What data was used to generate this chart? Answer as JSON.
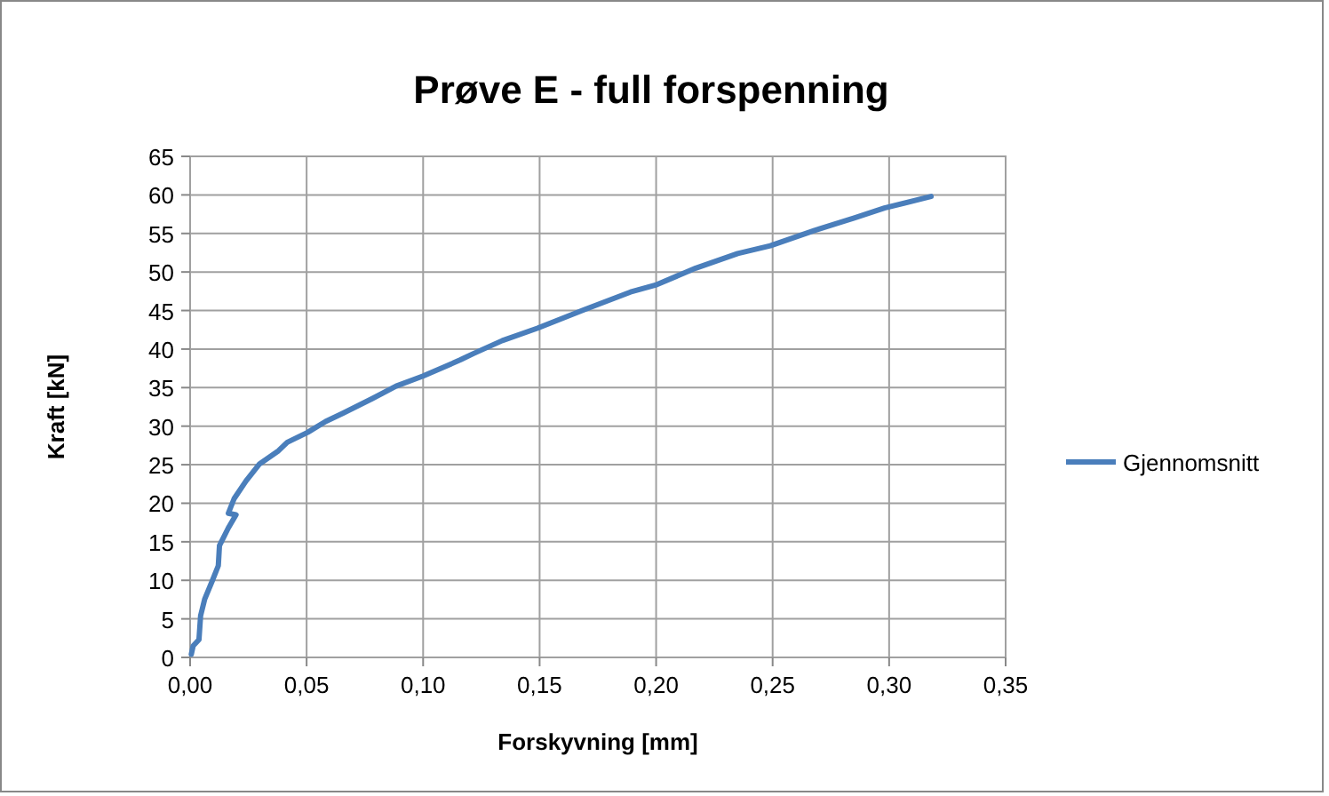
{
  "chart_data": {
    "type": "line",
    "title": "Prøve E - full forspenning",
    "xlabel": "Forskyvning [mm]",
    "ylabel": "Kraft [kN]",
    "xlim": [
      0,
      0.35
    ],
    "xticks": [
      {
        "value": 0,
        "label": "0,00"
      },
      {
        "value": 0.05,
        "label": "0,05"
      },
      {
        "value": 0.1,
        "label": "0,10"
      },
      {
        "value": 0.15,
        "label": "0,15"
      },
      {
        "value": 0.2,
        "label": "0,20"
      },
      {
        "value": 0.25,
        "label": "0,25"
      },
      {
        "value": 0.3,
        "label": "0,30"
      },
      {
        "value": 0.35,
        "label": "0,35"
      }
    ],
    "ylim": [
      0,
      65
    ],
    "yticks": [
      0,
      5,
      10,
      15,
      20,
      25,
      30,
      35,
      40,
      45,
      50,
      55,
      60,
      65
    ],
    "grid": true,
    "legend": "right",
    "marker": "none",
    "line_style": "solid",
    "series": [
      {
        "name": "Gjennomsnitt",
        "color": "#4a7ebb",
        "x": [
          0.0005,
          0.0013,
          0.0038,
          0.0045,
          0.0063,
          0.0096,
          0.0121,
          0.0126,
          0.0164,
          0.0197,
          0.0164,
          0.0189,
          0.024,
          0.0298,
          0.0379,
          0.0417,
          0.0505,
          0.0581,
          0.0657,
          0.0783,
          0.0884,
          0.1,
          0.116,
          0.1215,
          0.134,
          0.149,
          0.169,
          0.189,
          0.1997,
          0.217,
          0.235,
          0.249,
          0.268,
          0.285,
          0.298,
          0.318
        ],
        "values": [
          0.4,
          1.5,
          2.3,
          5.4,
          7.6,
          10,
          11.9,
          14.5,
          16.8,
          18.5,
          18.7,
          20.6,
          22.9,
          25.1,
          26.8,
          27.9,
          29.2,
          30.6,
          31.7,
          33.6,
          35.2,
          36.5,
          38.6,
          39.4,
          41.1,
          42.7,
          45.1,
          47.4,
          48.3,
          50.5,
          52.4,
          53.4,
          55.4,
          57,
          58.3,
          59.8
        ]
      }
    ]
  }
}
